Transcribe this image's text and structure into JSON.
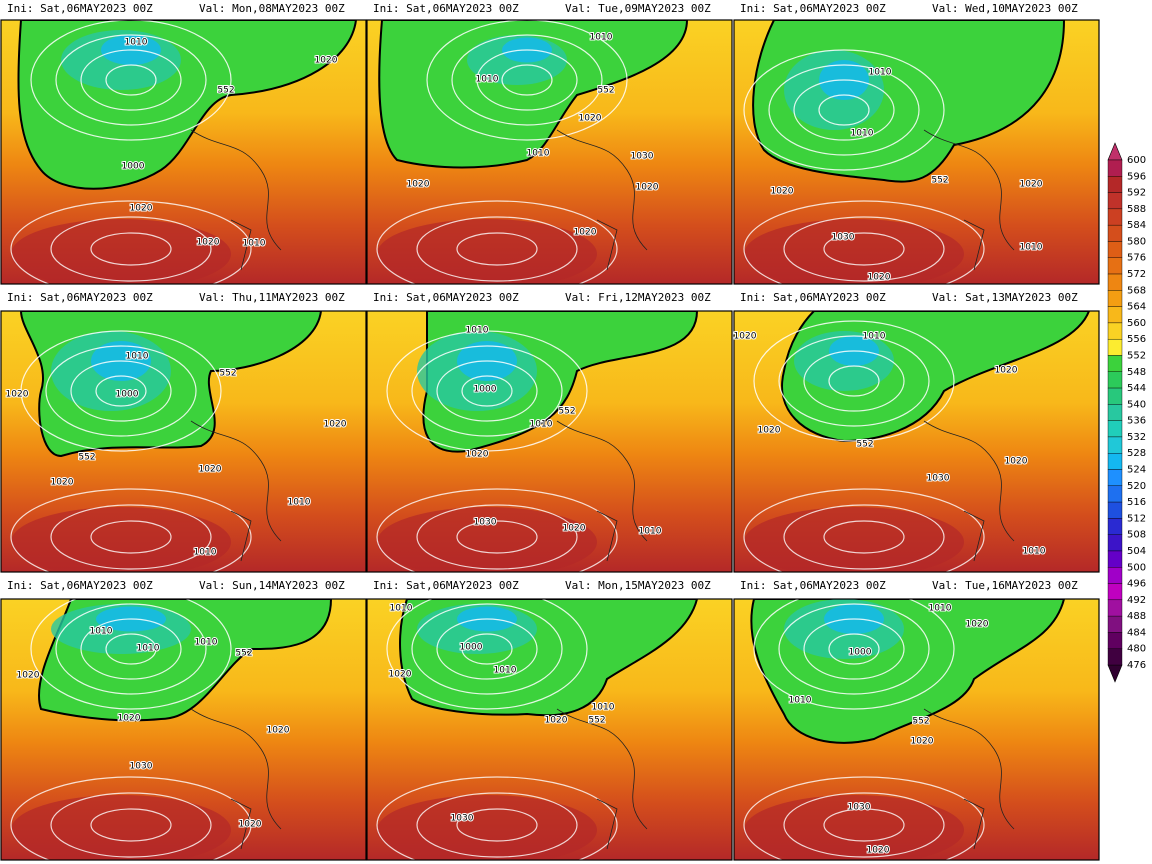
{
  "panels": [
    {
      "ini": "Ini: Sat,06MAY2023 00Z",
      "val": "Val: Mon,08MAY2023 00Z",
      "contour_labels": [
        "1010",
        "1020",
        "552",
        "1000",
        "1020",
        "1020",
        "1010"
      ]
    },
    {
      "ini": "Ini: Sat,06MAY2023 00Z",
      "val": "Val: Tue,09MAY2023 00Z",
      "contour_labels": [
        "1010",
        "1010",
        "552",
        "1020",
        "1010",
        "1030",
        "1020",
        "1020",
        "1020"
      ]
    },
    {
      "ini": "Ini: Sat,06MAY2023 00Z",
      "val": "Val: Wed,10MAY2023 00Z",
      "contour_labels": [
        "1010",
        "1010",
        "552",
        "1020",
        "1020",
        "1030",
        "1010",
        "1020"
      ]
    },
    {
      "ini": "Ini: Sat,06MAY2023 00Z",
      "val": "Val: Thu,11MAY2023 00Z",
      "contour_labels": [
        "1010",
        "552",
        "1020",
        "1000",
        "1020",
        "552",
        "1020",
        "1020",
        "1010",
        "1010"
      ]
    },
    {
      "ini": "Ini: Sat,06MAY2023 00Z",
      "val": "Val: Fri,12MAY2023 00Z",
      "contour_labels": [
        "1010",
        "1000",
        "552",
        "1010",
        "1020",
        "1030",
        "1020",
        "1010"
      ]
    },
    {
      "ini": "Ini: Sat,06MAY2023 00Z",
      "val": "Val: Sat,13MAY2023 00Z",
      "contour_labels": [
        "1020",
        "1010",
        "1020",
        "1020",
        "552",
        "1020",
        "1030",
        "1010"
      ]
    },
    {
      "ini": "Ini: Sat,06MAY2023 00Z",
      "val": "Val: Sun,14MAY2023 00Z",
      "contour_labels": [
        "1010",
        "1010",
        "1010",
        "552",
        "1020",
        "1020",
        "1020",
        "1030",
        "1020"
      ]
    },
    {
      "ini": "Ini: Sat,06MAY2023 00Z",
      "val": "Val: Mon,15MAY2023 00Z",
      "contour_labels": [
        "1010",
        "1000",
        "1020",
        "1010",
        "1010",
        "552",
        "1020",
        "1030"
      ]
    },
    {
      "ini": "Ini: Sat,06MAY2023 00Z",
      "val": "Val: Tue,16MAY2023 00Z",
      "contour_labels": [
        "1010",
        "1020",
        "1000",
        "1010",
        "552",
        "1020",
        "1030",
        "1020"
      ]
    }
  ],
  "colorbar": {
    "levels": [
      600,
      596,
      592,
      588,
      584,
      580,
      576,
      572,
      568,
      564,
      560,
      556,
      552,
      548,
      544,
      540,
      536,
      532,
      528,
      524,
      520,
      516,
      512,
      508,
      504,
      500,
      496,
      492,
      488,
      484,
      480,
      476
    ],
    "colors": [
      "#b01e50",
      "#b42828",
      "#c0322a",
      "#cc4022",
      "#d44e1c",
      "#de5e16",
      "#e67014",
      "#ee8612",
      "#f49e12",
      "#f8b81a",
      "#fad224",
      "#fcec30",
      "#3cd23c",
      "#2cca5a",
      "#28c87c",
      "#28c8a0",
      "#20ceba",
      "#20c8d8",
      "#14b8f0",
      "#1e90ff",
      "#1e70f0",
      "#1e50e0",
      "#2a2ad2",
      "#3c14c8",
      "#6400c8",
      "#a000c8",
      "#c000c0",
      "#a010a0",
      "#801080",
      "#600060",
      "#400040"
    ]
  }
}
